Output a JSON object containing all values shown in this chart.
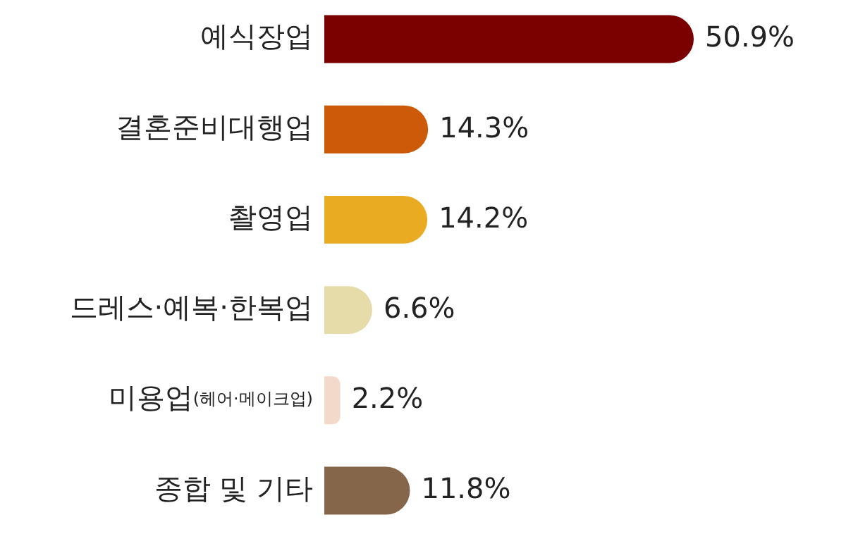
{
  "chart_data": {
    "type": "bar",
    "orientation": "horizontal",
    "categories": [
      "예식장업",
      "결혼준비대행업",
      "촬영업",
      "드레스·예복·한복업",
      "미용업(헤어·메이크업)",
      "종합 및 기타"
    ],
    "values": [
      50.9,
      14.3,
      14.2,
      6.6,
      2.2,
      11.8
    ],
    "colors": [
      "#7b0000",
      "#cc5a08",
      "#e9ab22",
      "#e6dcaa",
      "#f3d9c9",
      "#86664a"
    ],
    "value_labels": [
      "50.9%",
      "14.3%",
      "14.2%",
      "6.6%",
      "2.2%",
      "11.8%"
    ]
  }
}
